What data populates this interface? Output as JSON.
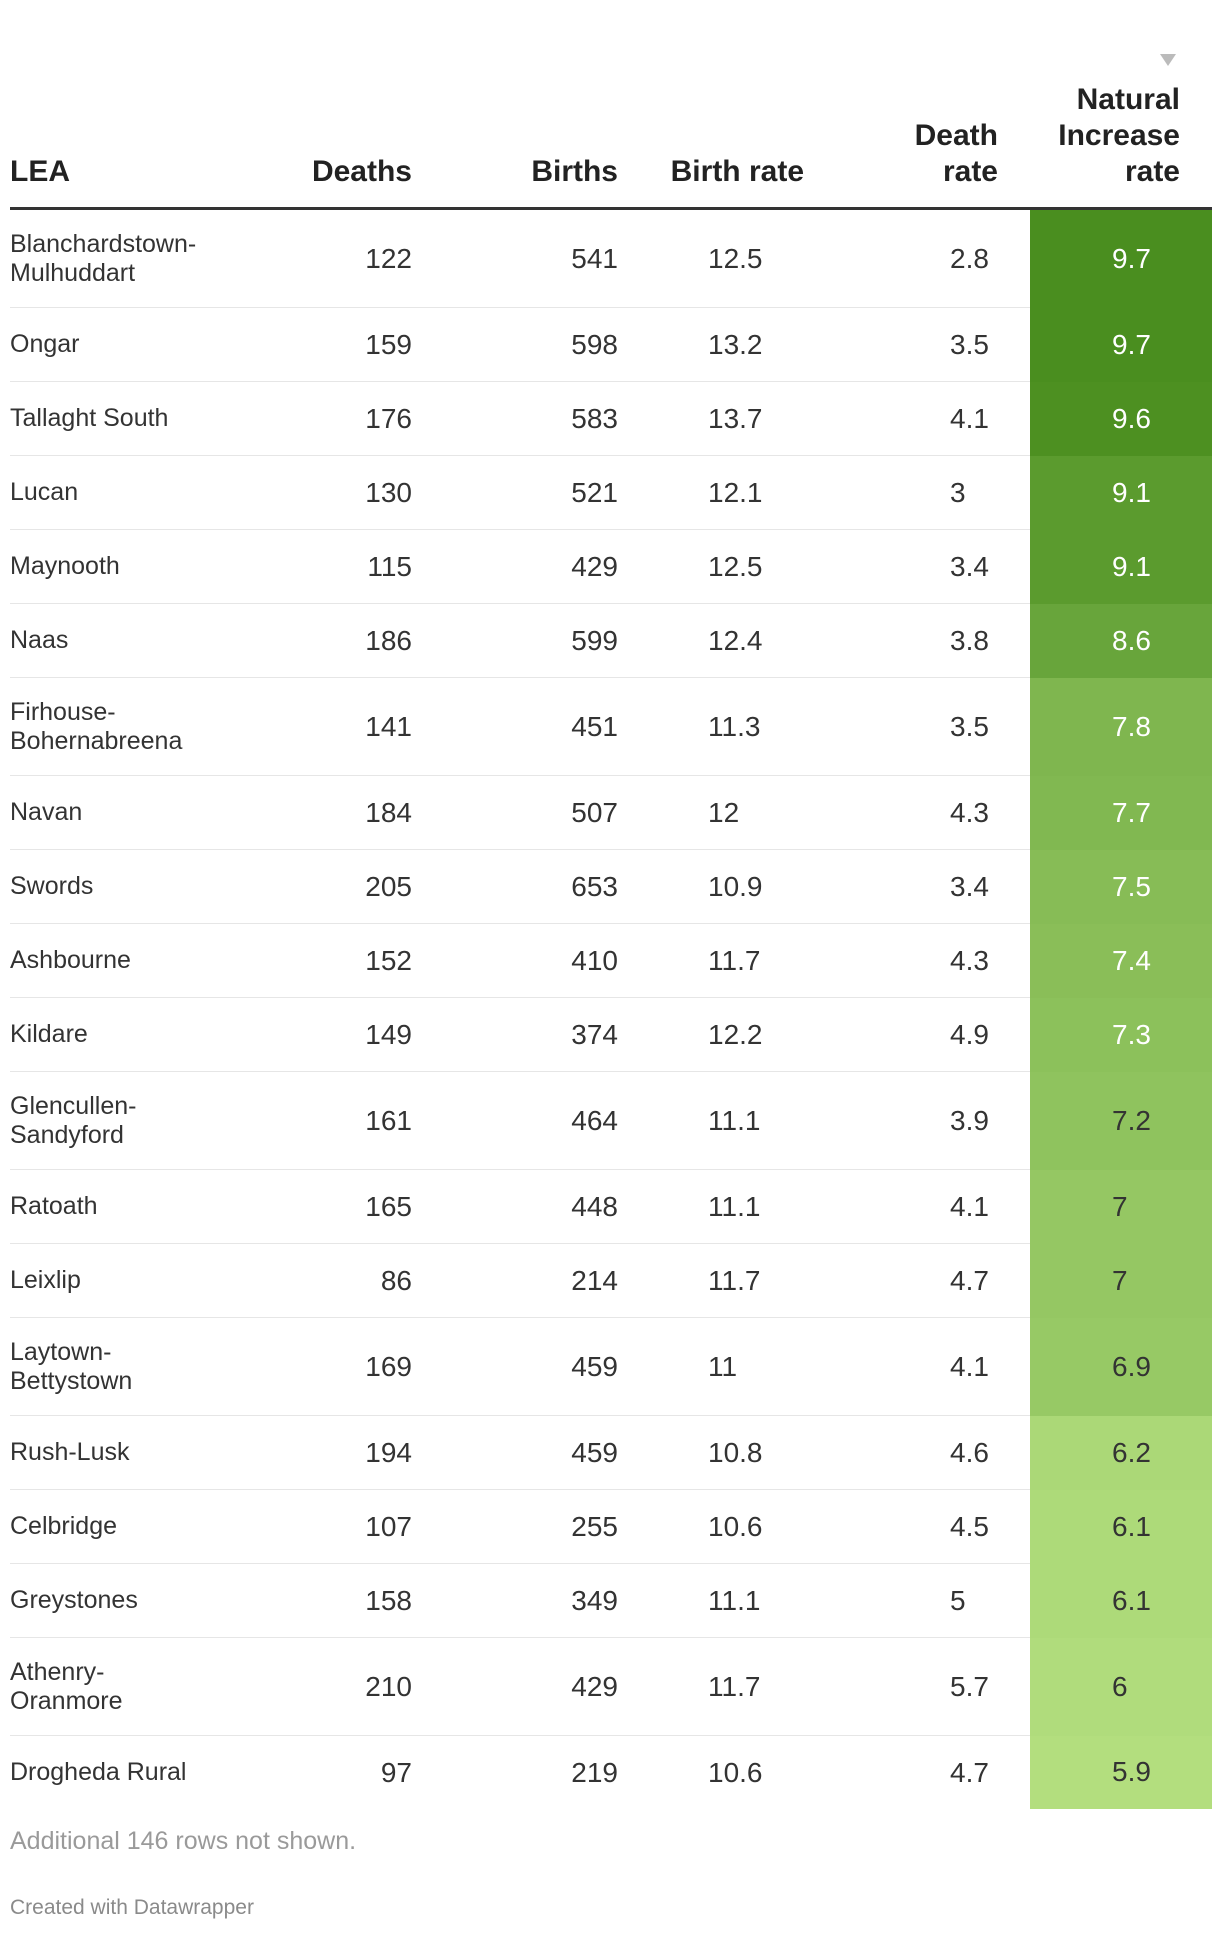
{
  "chart_data": {
    "type": "table",
    "columns": [
      "LEA",
      "Deaths",
      "Births",
      "Birth rate",
      "Death rate",
      "Natural Increase rate"
    ],
    "header_lines": {
      "lea": [
        "LEA"
      ],
      "deaths": [
        "Deaths"
      ],
      "births": [
        "Births"
      ],
      "birth_rate": [
        "Birth rate"
      ],
      "death_rate": [
        "Death",
        "rate"
      ],
      "natural_increase_rate": [
        "Natural",
        "Increase",
        "rate"
      ]
    },
    "sorted_by": "Natural Increase rate",
    "sort_order": "descending",
    "rows": [
      {
        "lea": [
          "Blanchardstown-",
          "Mulhuddart"
        ],
        "deaths": 122,
        "births": 541,
        "birth_rate": 12.5,
        "death_rate": 2.8,
        "natural_increase_rate": 9.7
      },
      {
        "lea": [
          "Ongar"
        ],
        "deaths": 159,
        "births": 598,
        "birth_rate": 13.2,
        "death_rate": 3.5,
        "natural_increase_rate": 9.7
      },
      {
        "lea": [
          "Tallaght South"
        ],
        "deaths": 176,
        "births": 583,
        "birth_rate": 13.7,
        "death_rate": 4.1,
        "natural_increase_rate": 9.6
      },
      {
        "lea": [
          "Lucan"
        ],
        "deaths": 130,
        "births": 521,
        "birth_rate": 12.1,
        "death_rate": 3,
        "natural_increase_rate": 9.1
      },
      {
        "lea": [
          "Maynooth"
        ],
        "deaths": 115,
        "births": 429,
        "birth_rate": 12.5,
        "death_rate": 3.4,
        "natural_increase_rate": 9.1
      },
      {
        "lea": [
          "Naas"
        ],
        "deaths": 186,
        "births": 599,
        "birth_rate": 12.4,
        "death_rate": 3.8,
        "natural_increase_rate": 8.6
      },
      {
        "lea": [
          "Firhouse-",
          "Bohernabreena"
        ],
        "deaths": 141,
        "births": 451,
        "birth_rate": 11.3,
        "death_rate": 3.5,
        "natural_increase_rate": 7.8
      },
      {
        "lea": [
          "Navan"
        ],
        "deaths": 184,
        "births": 507,
        "birth_rate": 12,
        "death_rate": 4.3,
        "natural_increase_rate": 7.7
      },
      {
        "lea": [
          "Swords"
        ],
        "deaths": 205,
        "births": 653,
        "birth_rate": 10.9,
        "death_rate": 3.4,
        "natural_increase_rate": 7.5
      },
      {
        "lea": [
          "Ashbourne"
        ],
        "deaths": 152,
        "births": 410,
        "birth_rate": 11.7,
        "death_rate": 4.3,
        "natural_increase_rate": 7.4
      },
      {
        "lea": [
          "Kildare"
        ],
        "deaths": 149,
        "births": 374,
        "birth_rate": 12.2,
        "death_rate": 4.9,
        "natural_increase_rate": 7.3
      },
      {
        "lea": [
          "Glencullen-",
          "Sandyford"
        ],
        "deaths": 161,
        "births": 464,
        "birth_rate": 11.1,
        "death_rate": 3.9,
        "natural_increase_rate": 7.2
      },
      {
        "lea": [
          "Ratoath"
        ],
        "deaths": 165,
        "births": 448,
        "birth_rate": 11.1,
        "death_rate": 4.1,
        "natural_increase_rate": 7
      },
      {
        "lea": [
          "Leixlip"
        ],
        "deaths": 86,
        "births": 214,
        "birth_rate": 11.7,
        "death_rate": 4.7,
        "natural_increase_rate": 7
      },
      {
        "lea": [
          "Laytown-",
          "Bettystown"
        ],
        "deaths": 169,
        "births": 459,
        "birth_rate": 11,
        "death_rate": 4.1,
        "natural_increase_rate": 6.9
      },
      {
        "lea": [
          "Rush-Lusk"
        ],
        "deaths": 194,
        "births": 459,
        "birth_rate": 10.8,
        "death_rate": 4.6,
        "natural_increase_rate": 6.2
      },
      {
        "lea": [
          "Celbridge"
        ],
        "deaths": 107,
        "births": 255,
        "birth_rate": 10.6,
        "death_rate": 4.5,
        "natural_increase_rate": 6.1
      },
      {
        "lea": [
          "Greystones"
        ],
        "deaths": 158,
        "births": 349,
        "birth_rate": 11.1,
        "death_rate": 5,
        "natural_increase_rate": 6.1
      },
      {
        "lea": [
          "Athenry-",
          "Oranmore"
        ],
        "deaths": 210,
        "births": 429,
        "birth_rate": 11.7,
        "death_rate": 5.7,
        "natural_increase_rate": 6
      },
      {
        "lea": [
          "Drogheda Rural"
        ],
        "deaths": 97,
        "births": 219,
        "birth_rate": 10.6,
        "death_rate": 4.7,
        "natural_increase_rate": 5.9
      }
    ],
    "heatmap": {
      "column": "natural_increase_rate",
      "min": 5.9,
      "max": 9.7,
      "color_low": "#b3de7e",
      "color_high": "#4a8e1f",
      "text_light": "#ffffff",
      "text_dark": "#333333"
    }
  },
  "footnote": "Additional 146 rows not shown.",
  "credit": "Created with Datawrapper"
}
